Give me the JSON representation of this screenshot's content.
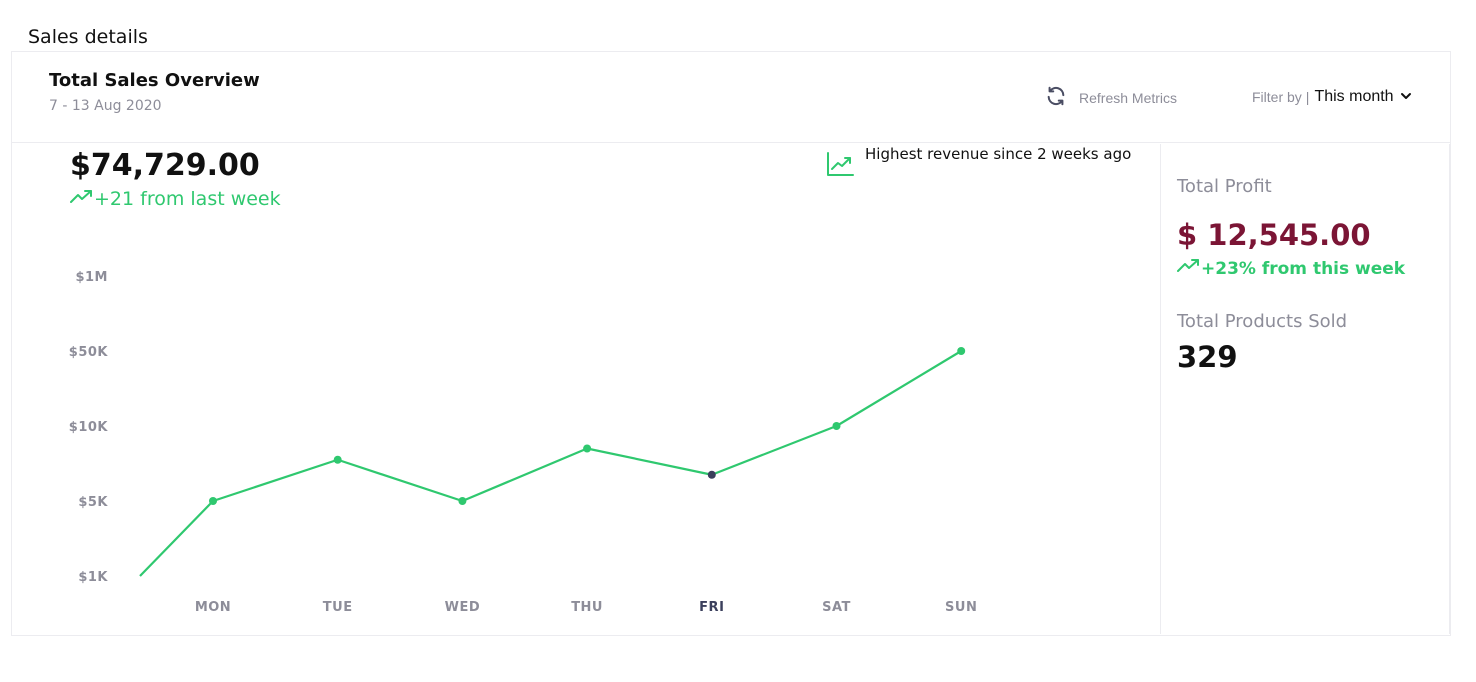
{
  "section_title": "Sales details",
  "card": {
    "title": "Total Sales Overview",
    "date_range": "7 - 13 Aug 2020",
    "refresh_label": "Refresh Metrics",
    "filter_label": "Filter by",
    "filter_separator": "|",
    "filter_value": "This month"
  },
  "revenue": {
    "value": "$74,729.00",
    "change": "+21 from last week",
    "highlight": "Highest revenue since 2 weeks ago"
  },
  "stats": {
    "profit_label": "Total Profit",
    "profit_value": "$ 12,545.00",
    "profit_change": "+23% from this week",
    "products_label": "Total Products Sold",
    "products_value": "329"
  },
  "colors": {
    "accent_green": "#2fc86f",
    "profit_red": "#7b1535",
    "muted": "#8d8d99",
    "selected_point": "#3b3f5c"
  },
  "icons": {
    "refresh": "refresh-icon",
    "chevron": "chevron-down-icon",
    "trend_up": "trend-up-icon",
    "chart_trend": "chart-trend-icon"
  },
  "chart_data": {
    "type": "line",
    "categories": [
      "MON",
      "TUE",
      "WED",
      "THU",
      "FRI",
      "SAT",
      "SUN"
    ],
    "y_tick_labels": [
      "$1K",
      "$5K",
      "$10K",
      "$50K",
      "$1M"
    ],
    "y_scale": "categorical (tick labels evenly spaced)",
    "selected_category": "FRI",
    "series": [
      {
        "x": [
          "",
          "MON",
          "TUE",
          "WED",
          "THU",
          "FRI",
          "SAT",
          "SUN"
        ],
        "y_position": [
          0,
          1.0,
          1.55,
          1.0,
          1.7,
          1.35,
          2.0,
          3.0
        ]
      }
    ],
    "grid": false,
    "legend": "none"
  }
}
